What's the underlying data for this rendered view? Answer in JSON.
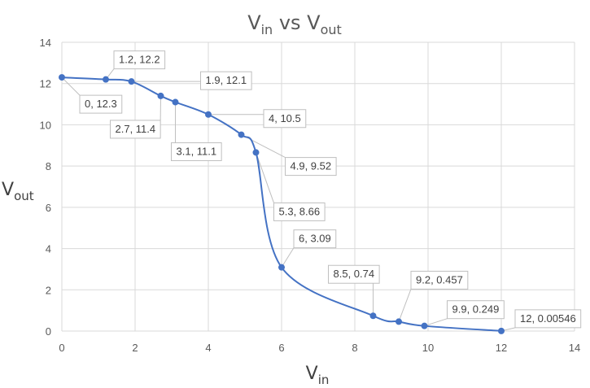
{
  "chart_data": {
    "type": "scatter",
    "title": {
      "main": "V",
      "sub": "in",
      "join": " vs V",
      "sub2": "out"
    },
    "xlabel": {
      "main": "V",
      "sub": "in"
    },
    "ylabel": {
      "main": "V",
      "sub": "out"
    },
    "xlim": [
      0,
      14
    ],
    "ylim": [
      0,
      14
    ],
    "xticks": [
      0,
      2,
      4,
      6,
      8,
      10,
      12,
      14
    ],
    "yticks": [
      0,
      2,
      4,
      6,
      8,
      10,
      12,
      14
    ],
    "grid": true,
    "smooth_line": true,
    "points": [
      {
        "x": 0,
        "y": 12.3,
        "label": "0, 12.3"
      },
      {
        "x": 1.2,
        "y": 12.2,
        "label": "1.2, 12.2"
      },
      {
        "x": 1.9,
        "y": 12.1,
        "label": "1.9, 12.1"
      },
      {
        "x": 2.7,
        "y": 11.4,
        "label": "2.7, 11.4"
      },
      {
        "x": 3.1,
        "y": 11.1,
        "label": "3.1, 11.1"
      },
      {
        "x": 4,
        "y": 10.5,
        "label": "4, 10.5"
      },
      {
        "x": 4.9,
        "y": 9.52,
        "label": "4.9, 9.52"
      },
      {
        "x": 5.3,
        "y": 8.66,
        "label": "5.3, 8.66"
      },
      {
        "x": 6,
        "y": 3.09,
        "label": "6, 3.09"
      },
      {
        "x": 8.5,
        "y": 0.74,
        "label": "8.5, 0.74"
      },
      {
        "x": 9.2,
        "y": 0.457,
        "label": "9.2, 0.457"
      },
      {
        "x": 9.9,
        "y": 0.249,
        "label": "9.9, 0.249"
      },
      {
        "x": 12,
        "y": 0.00546,
        "label": "12, 0.00546"
      }
    ],
    "colors": {
      "series": "#4472c4",
      "grid": "#d9d9d9",
      "label_border": "#bfbfbf"
    }
  }
}
